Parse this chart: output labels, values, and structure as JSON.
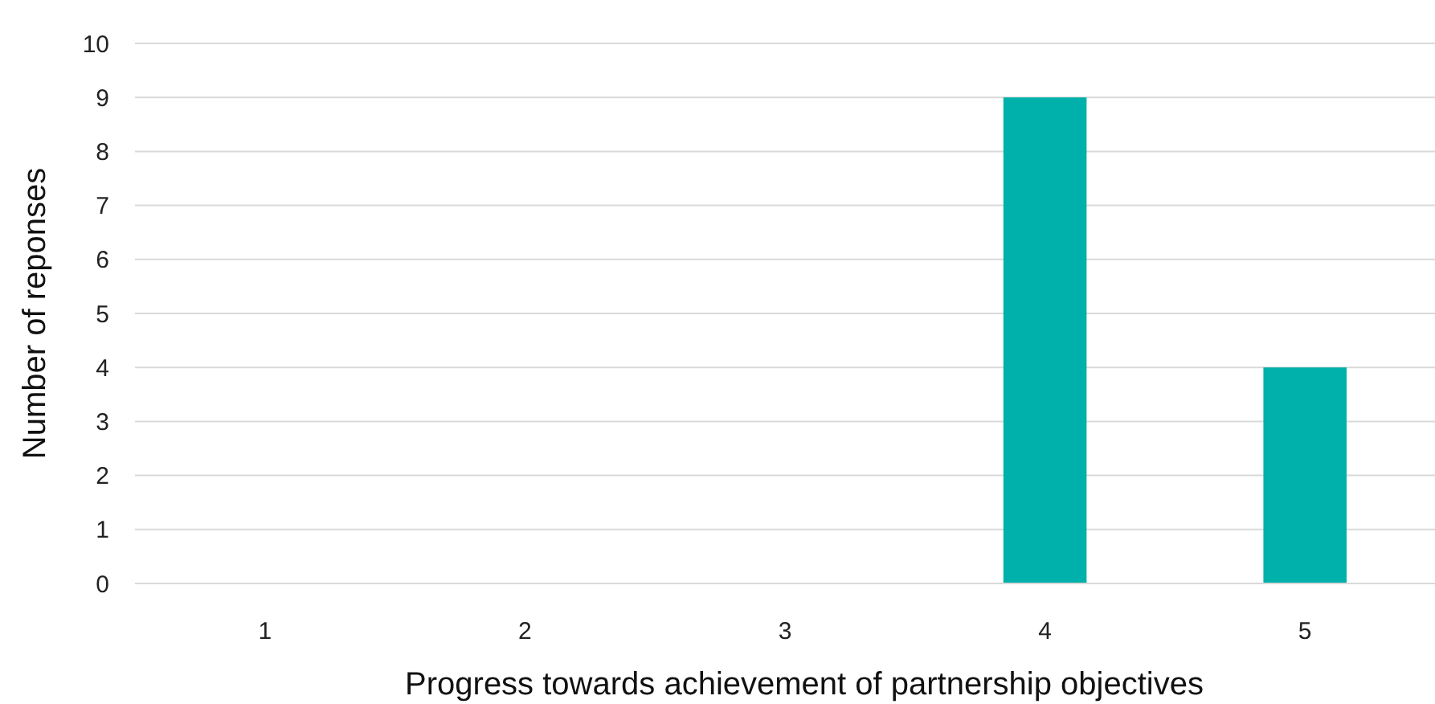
{
  "chart_data": {
    "type": "bar",
    "xlabel": "Progress towards achievement of partnership objectives",
    "ylabel": "Number of reponses",
    "categories": [
      "1",
      "2",
      "3",
      "4",
      "5"
    ],
    "values": [
      0,
      0,
      0,
      9,
      4
    ],
    "color": "#00b0aa",
    "ylim": [
      0,
      10
    ],
    "yticks": [
      0,
      1,
      2,
      3,
      4,
      5,
      6,
      7,
      8,
      9,
      10
    ],
    "grid": "y"
  }
}
